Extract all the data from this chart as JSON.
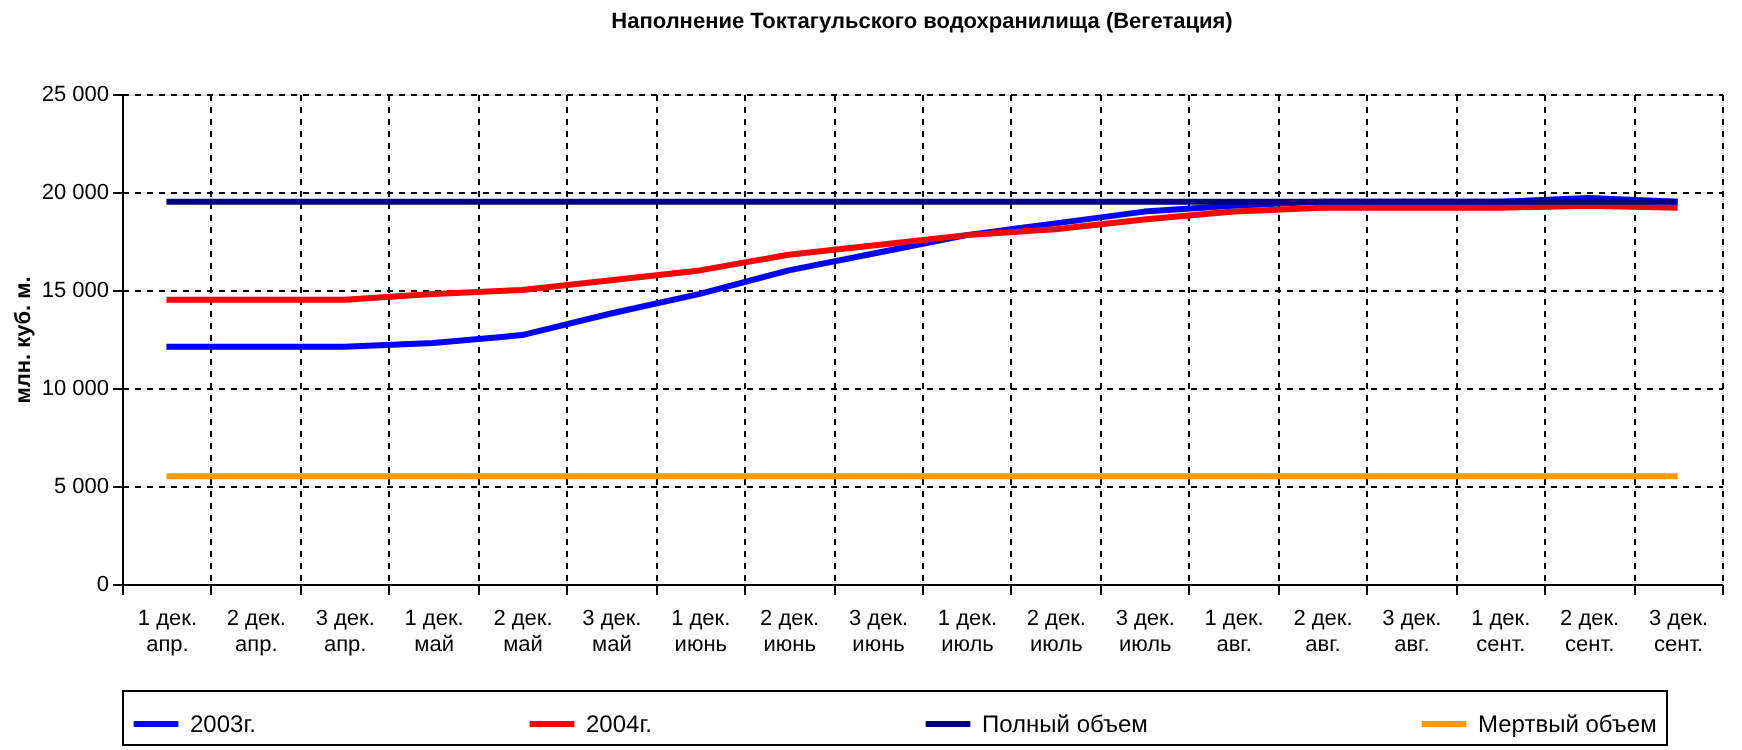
{
  "chart_data": {
    "type": "line",
    "title": "Наполнение Токтагульского водохранилища (Вегетация)",
    "ylabel": "млн. куб. м.",
    "categories": [
      "1 дек.\nапр.",
      "2 дек.\nапр.",
      "3 дек.\nапр.",
      "1 дек.\nмай",
      "2 дек.\nмай",
      "3 дек.\nмай",
      "1 дек.\nиюнь",
      "2 дек.\nиюнь",
      "3 дек.\nиюнь",
      "1 дек.\nиюль",
      "2 дек.\nиюль",
      "3 дек.\nиюль",
      "1 дек.\nавг.",
      "2 дек.\nавг.",
      "3 дек.\nавг.",
      "1 дек.\nсент.",
      "2 дек.\nсент.",
      "3 дек.\nсент."
    ],
    "series": [
      {
        "name": "2003г.",
        "color": "#0000ff",
        "values": [
          12100,
          12100,
          12100,
          12300,
          12700,
          13800,
          14800,
          16000,
          16900,
          17800,
          18400,
          19000,
          19300,
          19500,
          19500,
          19500,
          19700,
          19500
        ]
      },
      {
        "name": "2004г.",
        "color": "#ff0000",
        "values": [
          14500,
          14500,
          14500,
          14800,
          15000,
          15500,
          16000,
          16800,
          17300,
          17800,
          18100,
          18600,
          19000,
          19200,
          19200,
          19200,
          19300,
          19200
        ]
      },
      {
        "name": "Полный объем",
        "color": "#000080",
        "values": [
          19500,
          19500,
          19500,
          19500,
          19500,
          19500,
          19500,
          19500,
          19500,
          19500,
          19500,
          19500,
          19500,
          19500,
          19500,
          19500,
          19500,
          19500
        ]
      },
      {
        "name": "Мертвый объем",
        "color": "#ff9900",
        "values": [
          5500,
          5500,
          5500,
          5500,
          5500,
          5500,
          5500,
          5500,
          5500,
          5500,
          5500,
          5500,
          5500,
          5500,
          5500,
          5500,
          5500,
          5500
        ]
      }
    ],
    "ylim": [
      0,
      25000
    ],
    "yticks": [
      {
        "value": 0,
        "label": "0"
      },
      {
        "value": 5000,
        "label": "5 000"
      },
      {
        "value": 10000,
        "label": "10 000"
      },
      {
        "value": 15000,
        "label": "15 000"
      },
      {
        "value": 20000,
        "label": "20 000"
      },
      {
        "value": 25000,
        "label": "25 000"
      }
    ],
    "grid": true,
    "legend": "bottom",
    "marker": "none",
    "line_style": "solid"
  }
}
